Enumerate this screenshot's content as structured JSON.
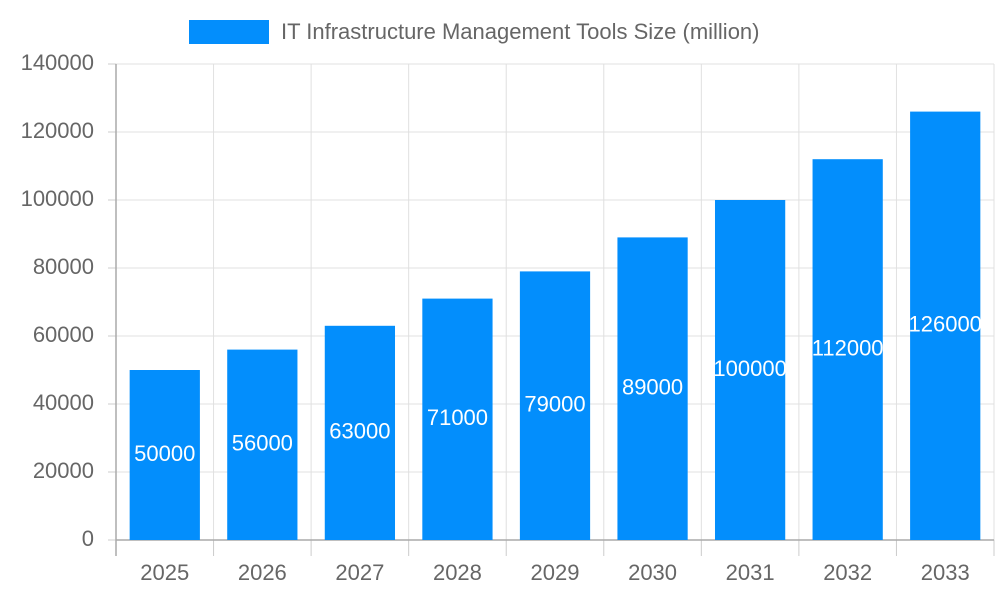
{
  "chart_data": {
    "type": "bar",
    "categories": [
      "2025",
      "2026",
      "2027",
      "2028",
      "2029",
      "2030",
      "2031",
      "2032",
      "2033"
    ],
    "series": [
      {
        "name": "IT Infrastructure Management Tools Size (million)",
        "color": "#038efc",
        "values": [
          50000,
          56000,
          63000,
          71000,
          79000,
          89000,
          100000,
          112000,
          126000
        ]
      }
    ],
    "ylim": [
      0,
      140000
    ],
    "yticks": [
      0,
      20000,
      40000,
      60000,
      80000,
      100000,
      120000,
      140000
    ],
    "grid": true,
    "legend": "top",
    "data_labels": true
  }
}
